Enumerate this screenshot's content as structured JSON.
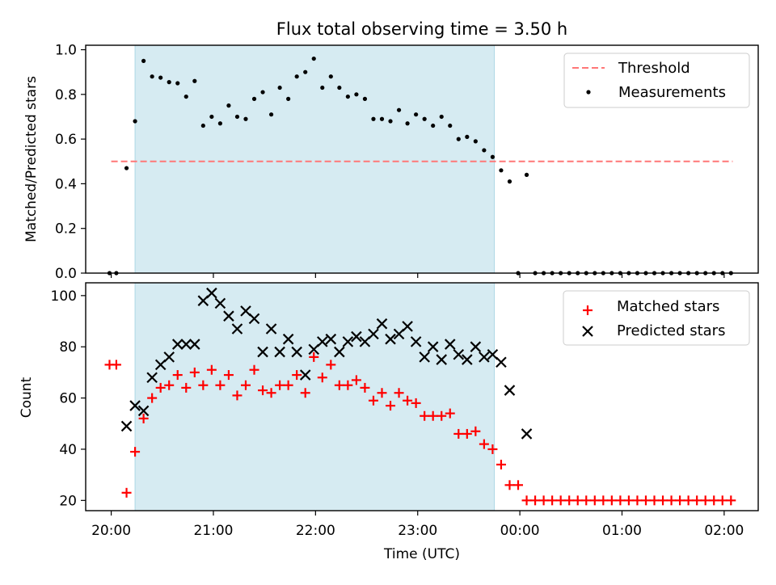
{
  "chart_data": [
    {
      "type": "scatter",
      "title": "Flux total observing time = 3.50 h",
      "xlabel": "",
      "ylabel": "Matched/Predicted stars",
      "xlim": [
        "19:45",
        "02:20"
      ],
      "ylim": [
        0,
        1.02
      ],
      "yticks": [
        "0.0",
        "0.2",
        "0.4",
        "0.6",
        "0.8",
        "1.0"
      ],
      "xticks": [
        "20:00",
        "21:00",
        "22:00",
        "23:00",
        "00:00",
        "01:00",
        "02:00"
      ],
      "shaded_interval": [
        "20:14",
        "23:45"
      ],
      "legend_position": "top-right",
      "grid": false,
      "series": [
        {
          "name": "Threshold",
          "kind": "dashed-line",
          "color": "#ff7777",
          "x": [
            "20:00",
            "02:05"
          ],
          "y": [
            0.5,
            0.5
          ]
        },
        {
          "name": "Measurements",
          "kind": "dot",
          "color": "#000000",
          "x": [
            "19:59",
            "20:03",
            "20:09",
            "20:14",
            "20:19",
            "20:24",
            "20:29",
            "20:34",
            "20:39",
            "20:44",
            "20:49",
            "20:54",
            "20:59",
            "21:04",
            "21:09",
            "21:14",
            "21:19",
            "21:24",
            "21:29",
            "21:34",
            "21:39",
            "21:44",
            "21:49",
            "21:54",
            "21:59",
            "22:04",
            "22:09",
            "22:14",
            "22:19",
            "22:24",
            "22:29",
            "22:34",
            "22:39",
            "22:44",
            "22:49",
            "22:54",
            "22:59",
            "23:04",
            "23:09",
            "23:14",
            "23:19",
            "23:24",
            "23:29",
            "23:34",
            "23:39",
            "23:44",
            "23:49",
            "23:54",
            "23:59",
            "00:04",
            "00:09",
            "00:14",
            "00:19",
            "00:24",
            "00:29",
            "00:34",
            "00:39",
            "00:44",
            "00:49",
            "00:54",
            "00:59",
            "01:04",
            "01:09",
            "01:14",
            "01:19",
            "01:24",
            "01:29",
            "01:34",
            "01:39",
            "01:44",
            "01:49",
            "01:54",
            "01:59",
            "02:04"
          ],
          "y": [
            0,
            0,
            0.47,
            0.68,
            0.95,
            0.88,
            0.875,
            0.855,
            0.85,
            0.79,
            0.86,
            0.66,
            0.7,
            0.67,
            0.75,
            0.7,
            0.69,
            0.78,
            0.81,
            0.71,
            0.83,
            0.78,
            0.88,
            0.9,
            0.96,
            0.83,
            0.88,
            0.83,
            0.79,
            0.8,
            0.78,
            0.69,
            0.69,
            0.68,
            0.73,
            0.67,
            0.71,
            0.69,
            0.66,
            0.7,
            0.66,
            0.6,
            0.61,
            0.59,
            0.55,
            0.52,
            0.46,
            0.41,
            0,
            0.44,
            0,
            0,
            0,
            0,
            0,
            0,
            0,
            0,
            0,
            0,
            0,
            0,
            0,
            0,
            0,
            0,
            0,
            0,
            0,
            0,
            0,
            0,
            0,
            0
          ]
        }
      ]
    },
    {
      "type": "scatter",
      "title": "",
      "xlabel": "Time (UTC)",
      "ylabel": "Count",
      "xlim": [
        "19:45",
        "02:20"
      ],
      "ylim": [
        16,
        105
      ],
      "yticks": [
        "20",
        "40",
        "60",
        "80",
        "100"
      ],
      "xticks": [
        "20:00",
        "21:00",
        "22:00",
        "23:00",
        "00:00",
        "01:00",
        "02:00"
      ],
      "shaded_interval": [
        "20:14",
        "23:45"
      ],
      "legend_position": "top-right",
      "grid": false,
      "series": [
        {
          "name": "Matched stars",
          "kind": "plus",
          "color": "#ff0000",
          "x": [
            "19:59",
            "20:03",
            "20:09",
            "20:14",
            "20:19",
            "20:24",
            "20:29",
            "20:34",
            "20:39",
            "20:44",
            "20:49",
            "20:54",
            "20:59",
            "21:04",
            "21:09",
            "21:14",
            "21:19",
            "21:24",
            "21:29",
            "21:34",
            "21:39",
            "21:44",
            "21:49",
            "21:54",
            "21:59",
            "22:04",
            "22:09",
            "22:14",
            "22:19",
            "22:24",
            "22:29",
            "22:34",
            "22:39",
            "22:44",
            "22:49",
            "22:54",
            "22:59",
            "23:04",
            "23:09",
            "23:14",
            "23:19",
            "23:24",
            "23:29",
            "23:34",
            "23:39",
            "23:44",
            "23:49",
            "23:54",
            "23:59",
            "00:04",
            "00:09",
            "00:14",
            "00:19",
            "00:24",
            "00:29",
            "00:34",
            "00:39",
            "00:44",
            "00:49",
            "00:54",
            "00:59",
            "01:04",
            "01:09",
            "01:14",
            "01:19",
            "01:24",
            "01:29",
            "01:34",
            "01:39",
            "01:44",
            "01:49",
            "01:54",
            "01:59",
            "02:04"
          ],
          "y": [
            73,
            73,
            23,
            39,
            52,
            60,
            64,
            65,
            69,
            64,
            70,
            65,
            71,
            65,
            69,
            61,
            65,
            71,
            63,
            62,
            65,
            65,
            69,
            62,
            76,
            68,
            73,
            65,
            65,
            67,
            64,
            59,
            62,
            57,
            62,
            59,
            58,
            53,
            53,
            53,
            54,
            46,
            46,
            47,
            42,
            40,
            34,
            26,
            26,
            20,
            20,
            20,
            20,
            20,
            20,
            20,
            20,
            20,
            20,
            20,
            20,
            20,
            20,
            20,
            20,
            20,
            20,
            20,
            20,
            20,
            20,
            20,
            20,
            20
          ]
        },
        {
          "name": "Predicted stars",
          "kind": "cross",
          "color": "#000000",
          "x": [
            "20:09",
            "20:14",
            "20:19",
            "20:24",
            "20:29",
            "20:34",
            "20:39",
            "20:44",
            "20:49",
            "20:54",
            "20:59",
            "21:04",
            "21:09",
            "21:14",
            "21:19",
            "21:24",
            "21:29",
            "21:34",
            "21:39",
            "21:44",
            "21:49",
            "21:54",
            "21:59",
            "22:04",
            "22:09",
            "22:14",
            "22:19",
            "22:24",
            "22:29",
            "22:34",
            "22:39",
            "22:44",
            "22:49",
            "22:54",
            "22:59",
            "23:04",
            "23:09",
            "23:14",
            "23:19",
            "23:24",
            "23:29",
            "23:34",
            "23:39",
            "23:44",
            "23:49",
            "23:54",
            "00:04"
          ],
          "y": [
            49,
            57,
            55,
            68,
            73,
            76,
            81,
            81,
            81,
            98,
            101,
            97,
            92,
            87,
            94,
            91,
            78,
            87,
            78,
            83,
            78,
            69,
            79,
            82,
            83,
            78,
            82,
            84,
            82,
            85,
            89,
            83,
            85,
            88,
            82,
            76,
            80,
            75,
            81,
            77,
            75,
            80,
            76,
            77,
            74,
            63,
            46
          ]
        }
      ]
    }
  ]
}
